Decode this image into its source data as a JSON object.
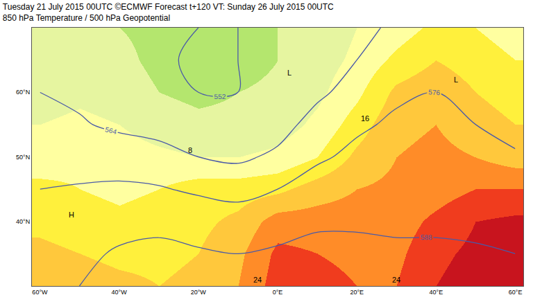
{
  "chart_data": {
    "type": "map",
    "title": "Tuesday 21 July 2015 00UTC ©ECMWF Forecast t+120 VT: Sunday 26 July 2015 00UTC",
    "subtitle": "850 hPa Temperature / 500 hPa Geopotential",
    "xlim": [
      -62,
      62
    ],
    "ylim": [
      30,
      70
    ],
    "xticks": [
      {
        "value": -60,
        "label": "60°W"
      },
      {
        "value": -40,
        "label": "40°W"
      },
      {
        "value": -20,
        "label": "20°W"
      },
      {
        "value": 0,
        "label": "0°E"
      },
      {
        "value": 20,
        "label": "20°E"
      },
      {
        "value": 40,
        "label": "40°E"
      },
      {
        "value": 60,
        "label": "60°E"
      }
    ],
    "yticks": [
      {
        "value": 40,
        "label": "40°N"
      },
      {
        "value": 50,
        "label": "50°N"
      },
      {
        "value": 60,
        "label": "60°N"
      }
    ],
    "grid": true,
    "temperature": {
      "lon": [
        -60,
        -50,
        -40,
        -30,
        -20,
        -10,
        0,
        10,
        20,
        30,
        40,
        50,
        60
      ],
      "lat": [
        30,
        35,
        40,
        45,
        50,
        55,
        60,
        65,
        70
      ],
      "values": [
        [
          18,
          18,
          17,
          16,
          17,
          20,
          26,
          27,
          24,
          24,
          28,
          30,
          30
        ],
        [
          17,
          16,
          15,
          15,
          16,
          19,
          25,
          24,
          22,
          23,
          27,
          29,
          30
        ],
        [
          15,
          14,
          13,
          14,
          15,
          17,
          22,
          22,
          22,
          22,
          25,
          28,
          29
        ],
        [
          13,
          12,
          11,
          12,
          14,
          14,
          15,
          18,
          20,
          21,
          22,
          24,
          24
        ],
        [
          10,
          11,
          10,
          9,
          8,
          8,
          9,
          12,
          17,
          20,
          21,
          20,
          18
        ],
        [
          8,
          9,
          8,
          6,
          5,
          5,
          6,
          9,
          14,
          19,
          20,
          18,
          16
        ],
        [
          6,
          7,
          6,
          4,
          3,
          4,
          5,
          7,
          11,
          17,
          19,
          16,
          14
        ],
        [
          5,
          6,
          5,
          3,
          2,
          2,
          4,
          6,
          9,
          13,
          16,
          14,
          12
        ],
        [
          6,
          6,
          4,
          3,
          2,
          3,
          4,
          5,
          8,
          10,
          13,
          12,
          10
        ]
      ],
      "range": [
        0,
        32
      ],
      "levels": [
        0,
        4,
        8,
        12,
        16,
        20,
        24,
        28,
        32
      ],
      "colors": [
        "#b4e66e",
        "#e6f5a0",
        "#ffffa0",
        "#fff03c",
        "#ffc83c",
        "#ff8c28",
        "#f03c1e",
        "#c8141e"
      ]
    },
    "geopotential": {
      "lon": [
        -60,
        -50,
        -40,
        -30,
        -20,
        -10,
        0,
        10,
        20,
        30,
        40,
        50,
        60
      ],
      "lat": [
        30,
        35,
        40,
        45,
        50,
        55,
        60,
        65,
        70
      ],
      "values": [
        [
          586,
          588,
          590,
          591,
          590,
          590,
          591,
          592,
          592,
          590,
          590,
          590,
          590
        ],
        [
          584,
          586,
          589,
          590,
          589,
          588,
          589,
          590,
          590,
          589,
          589,
          589,
          588
        ],
        [
          580,
          582,
          585,
          586,
          584,
          582,
          585,
          587,
          587,
          587,
          587,
          586,
          585
        ],
        [
          576,
          577,
          578,
          577,
          574,
          572,
          576,
          582,
          584,
          585,
          585,
          584,
          582
        ],
        [
          570,
          571,
          570,
          568,
          564,
          562,
          566,
          574,
          579,
          582,
          582,
          580,
          577
        ],
        [
          566,
          565,
          562,
          560,
          556,
          556,
          560,
          568,
          574,
          578,
          579,
          576,
          573
        ],
        [
          564,
          562,
          558,
          555,
          552,
          552,
          556,
          562,
          568,
          574,
          576,
          573,
          570
        ],
        [
          563,
          560,
          556,
          553,
          551,
          552,
          554,
          558,
          564,
          570,
          572,
          570,
          567
        ],
        [
          562,
          559,
          556,
          553,
          552,
          552,
          553,
          556,
          561,
          566,
          568,
          567,
          565
        ]
      ],
      "levels": {
        "start": 552,
        "end": 588,
        "size": 12
      },
      "color": "#4a5aa8"
    },
    "annotations": [
      {
        "text": "H",
        "lon": -52,
        "lat": 41
      },
      {
        "text": "L",
        "lon": 3,
        "lat": 63
      },
      {
        "text": "L",
        "lon": 45,
        "lat": 62
      },
      {
        "text": "8",
        "lon": -22,
        "lat": 51
      },
      {
        "text": "16",
        "lon": 22,
        "lat": 56
      },
      {
        "text": "24",
        "lon": -5,
        "lat": 31
      },
      {
        "text": "24",
        "lon": 30,
        "lat": 31
      }
    ]
  }
}
